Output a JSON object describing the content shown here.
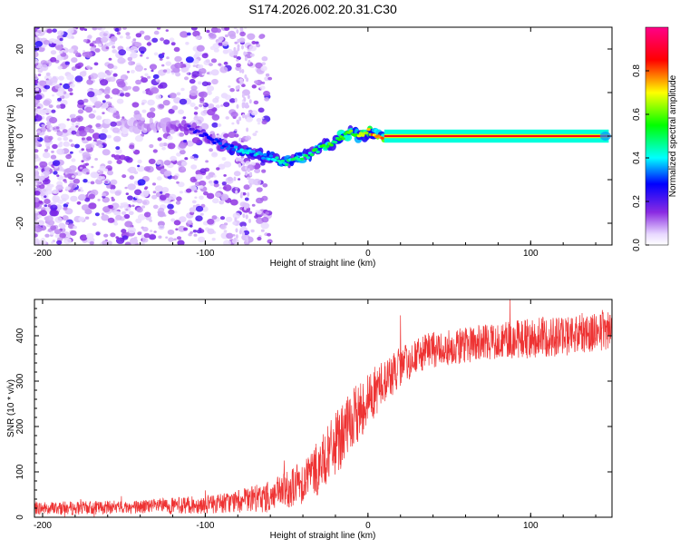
{
  "title": "S174.2026.002.20.31.C30",
  "chart_data": [
    {
      "type": "heatmap",
      "title": "S174.2026.002.20.31.C30",
      "xlabel": "Height of straight line (km)",
      "ylabel": "Frequency (Hz)",
      "xlim": [
        -205,
        150
      ],
      "ylim": [
        -25,
        25
      ],
      "x_ticks": [
        "-200",
        "-100",
        "0",
        "100"
      ],
      "y_ticks": [
        "20",
        "10",
        "0",
        "-10",
        "-20"
      ],
      "x_tick_values": [
        -200,
        -100,
        0,
        100
      ],
      "y_tick_values": [
        20,
        10,
        0,
        -10,
        -20
      ],
      "colorbar": {
        "label": "Normalized spectral amplitude",
        "range": [
          0,
          1
        ],
        "ticks": [
          "0.0",
          "0.2",
          "0.4",
          "0.6",
          "0.8"
        ],
        "tick_values": [
          0,
          0.2,
          0.4,
          0.6,
          0.8
        ],
        "colors": [
          "#ffffff",
          "#8a2be2",
          "#0000ff",
          "#00ffff",
          "#00ff00",
          "#ffff00",
          "#ff0000",
          "#ff00aa"
        ]
      },
      "ridge": {
        "x": [
          -150,
          -130,
          -110,
          -100,
          -90,
          -80,
          -70,
          -60,
          -50,
          -40,
          -30,
          -20,
          -10,
          -5,
          0,
          5,
          10,
          20,
          40,
          60,
          80,
          100,
          120,
          145
        ],
        "y": [
          2,
          3,
          2,
          0,
          -2,
          -3,
          -4,
          -5,
          -6,
          -5,
          -3,
          -1,
          1,
          0,
          1,
          0.5,
          0,
          0,
          0,
          0,
          0,
          0,
          0,
          0
        ],
        "amp": [
          0.1,
          0.15,
          0.2,
          0.25,
          0.3,
          0.35,
          0.4,
          0.4,
          0.45,
          0.5,
          0.5,
          0.55,
          0.6,
          0.65,
          0.7,
          0.75,
          0.85,
          0.9,
          0.9,
          0.9,
          0.9,
          0.9,
          0.9,
          0.9
        ]
      }
    },
    {
      "type": "line",
      "xlabel": "Height of straight line (km)",
      "ylabel": "SNR (10 * v/v)",
      "xlim": [
        -205,
        150
      ],
      "ylim": [
        0,
        480
      ],
      "x_ticks": [
        "-200",
        "-100",
        "0",
        "100"
      ],
      "y_ticks": [
        "0",
        "100",
        "200",
        "300",
        "400"
      ],
      "x_tick_values": [
        -200,
        -100,
        0,
        100
      ],
      "y_tick_values": [
        0,
        100,
        200,
        300,
        400
      ],
      "series": [
        {
          "name": "SNR",
          "color": "#ee3333",
          "x": [
            -205,
            -180,
            -150,
            -120,
            -100,
            -80,
            -70,
            -60,
            -50,
            -40,
            -30,
            -20,
            -10,
            0,
            10,
            20,
            30,
            40,
            60,
            80,
            100,
            120,
            140,
            150
          ],
          "y": [
            20,
            20,
            22,
            25,
            28,
            35,
            40,
            45,
            60,
            80,
            110,
            160,
            210,
            260,
            300,
            330,
            355,
            370,
            380,
            390,
            395,
            400,
            410,
            415
          ],
          "noise": [
            15,
            15,
            15,
            18,
            20,
            25,
            30,
            35,
            40,
            50,
            60,
            70,
            70,
            60,
            50,
            45,
            40,
            40,
            40,
            40,
            45,
            45,
            45,
            45
          ]
        }
      ]
    }
  ]
}
